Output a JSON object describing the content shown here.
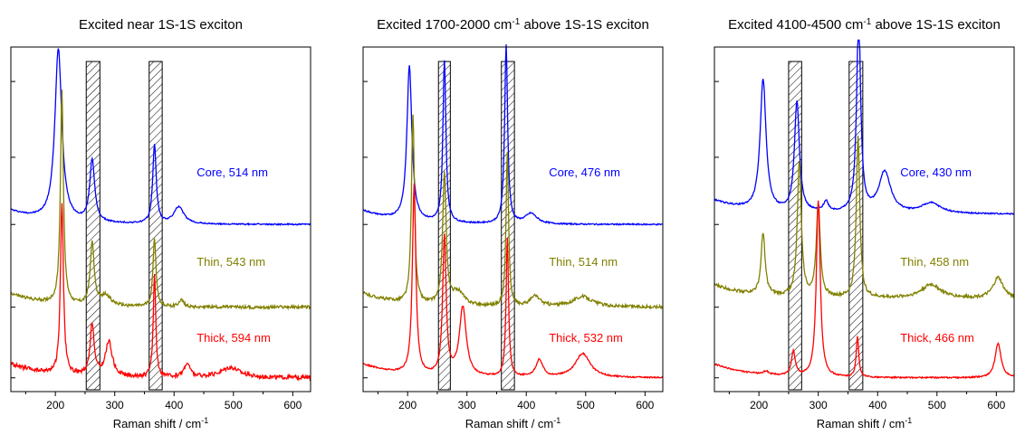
{
  "chart_data": [
    {
      "type": "line",
      "title": "Excited near 1S-1S exciton",
      "title_parts": [
        "Excited near 1S-1S exciton"
      ],
      "xlabel": "Raman shift / cm",
      "xlabel_sup": "-1",
      "ylabel": "",
      "xlim": [
        125,
        630
      ],
      "ylim": [
        0,
        1
      ],
      "xticks": [
        200,
        300,
        400,
        500,
        600
      ],
      "y_axis_labels": "none",
      "grid": false,
      "legend": "inline labels to the right of each trace",
      "highlight_bands": [
        [
          252,
          275
        ],
        [
          358,
          380
        ]
      ],
      "series": [
        {
          "name": "Core, 514 nm",
          "color": "#0000ff",
          "baseline": 0.485,
          "offset_label": 0.625,
          "peaks": [
            [
              205,
              0.5,
              7
            ],
            [
              262,
              0.18,
              5
            ],
            [
              367,
              0.23,
              3.5
            ],
            [
              408,
              0.05,
              10
            ]
          ]
        },
        {
          "name": "Thin, 543 nm",
          "color": "#808000",
          "baseline": 0.245,
          "offset_label": 0.365,
          "peaks": [
            [
              211,
              0.62,
              3
            ],
            [
              262,
              0.18,
              4
            ],
            [
              285,
              0.03,
              10
            ],
            [
              367,
              0.2,
              3
            ],
            [
              412,
              0.02,
              5
            ]
          ]
        },
        {
          "name": "Thick, 594 nm",
          "color": "#ff0000",
          "baseline": 0.04,
          "offset_label": 0.145,
          "peaks": [
            [
              211,
              0.5,
              3
            ],
            [
              262,
              0.15,
              4
            ],
            [
              290,
              0.1,
              7
            ],
            [
              367,
              0.3,
              2.5
            ],
            [
              422,
              0.04,
              6
            ],
            [
              495,
              0.03,
              20
            ]
          ]
        }
      ]
    },
    {
      "type": "line",
      "title": "Excited 1700-2000 cm-1 above 1S-1S exciton",
      "title_parts": [
        "Excited 1700-2000 cm",
        "-1",
        " above 1S-1S exciton"
      ],
      "xlabel": "Raman shift / cm",
      "xlabel_sup": "-1",
      "ylabel": "",
      "xlim": [
        125,
        630
      ],
      "ylim": [
        0,
        1
      ],
      "xticks": [
        200,
        300,
        400,
        500,
        600
      ],
      "y_axis_labels": "none",
      "grid": false,
      "legend": "inline labels to the right of each trace",
      "highlight_bands": [
        [
          252,
          272
        ],
        [
          358,
          380
        ]
      ],
      "series": [
        {
          "name": "Core, 476 nm",
          "color": "#0000ff",
          "baseline": 0.485,
          "offset_label": 0.625,
          "peaks": [
            [
              203,
              0.45,
              5
            ],
            [
              262,
              0.47,
              3
            ],
            [
              366,
              0.52,
              3
            ],
            [
              408,
              0.03,
              12
            ]
          ]
        },
        {
          "name": "Thin, 514 nm",
          "color": "#808000",
          "baseline": 0.245,
          "offset_label": 0.365,
          "peaks": [
            [
              209,
              0.55,
              3
            ],
            [
              262,
              0.38,
              3.5
            ],
            [
              285,
              0.04,
              12
            ],
            [
              368,
              0.45,
              2.5
            ],
            [
              415,
              0.03,
              10
            ],
            [
              495,
              0.03,
              20
            ]
          ]
        },
        {
          "name": "Thick, 532 nm",
          "color": "#ff0000",
          "baseline": 0.04,
          "offset_label": 0.145,
          "peaks": [
            [
              211,
              0.55,
              3.5
            ],
            [
              262,
              0.4,
              3.5
            ],
            [
              293,
              0.2,
              7
            ],
            [
              368,
              0.4,
              2.5
            ],
            [
              422,
              0.05,
              7
            ],
            [
              495,
              0.07,
              15
            ]
          ]
        }
      ]
    },
    {
      "type": "line",
      "title": "Excited 4100-4500 cm-1 above 1S-1S exciton",
      "title_parts": [
        "Excited 4100-4500 cm",
        "-1",
        " above 1S-1S exciton"
      ],
      "xlabel": "Raman shift / cm",
      "xlabel_sup": "-1",
      "ylabel": "",
      "xlim": [
        125,
        630
      ],
      "ylim": [
        0,
        1
      ],
      "xticks": [
        200,
        300,
        400,
        500,
        600
      ],
      "y_axis_labels": "none",
      "grid": false,
      "legend": "inline labels to the right of each trace",
      "highlight_bands": [
        [
          250,
          272
        ],
        [
          352,
          375
        ]
      ],
      "series": [
        {
          "name": "Core, 430 nm",
          "color": "#0000ff",
          "baseline": 0.515,
          "offset_label": 0.625,
          "peaks": [
            [
              207,
              0.38,
              6
            ],
            [
              264,
              0.32,
              5
            ],
            [
              313,
              0.03,
              5
            ],
            [
              368,
              0.58,
              4
            ],
            [
              412,
              0.12,
              12
            ],
            [
              490,
              0.03,
              20
            ]
          ]
        },
        {
          "name": "Thin, 458 nm",
          "color": "#808000",
          "baseline": 0.27,
          "offset_label": 0.365,
          "peaks": [
            [
              207,
              0.18,
              4
            ],
            [
              268,
              0.39,
              4
            ],
            [
              300,
              0.27,
              4
            ],
            [
              367,
              0.47,
              3.5
            ],
            [
              490,
              0.04,
              20
            ],
            [
              603,
              0.06,
              10
            ]
          ]
        },
        {
          "name": "Thick, 466 nm",
          "color": "#ff0000",
          "baseline": 0.04,
          "offset_label": 0.145,
          "peaks": [
            [
              212,
              0.01,
              5
            ],
            [
              258,
              0.07,
              4
            ],
            [
              300,
              0.51,
              4
            ],
            [
              366,
              0.12,
              2.5
            ],
            [
              603,
              0.1,
              6
            ]
          ]
        }
      ]
    }
  ]
}
